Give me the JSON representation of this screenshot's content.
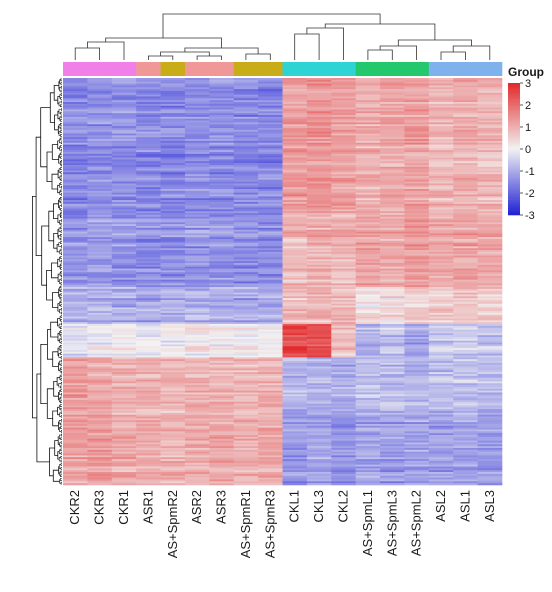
{
  "chart_data": {
    "type": "heatmap",
    "title": "",
    "legend_title": "Group",
    "color_scale": {
      "ticks": [
        3,
        2,
        1,
        0,
        -1,
        -2,
        -3
      ],
      "low_color": "#1f1fd6",
      "mid_color": "#f2f2f2",
      "high_color": "#e2282a"
    },
    "columns": [
      "CKR2",
      "CKR3",
      "CKR1",
      "ASR1",
      "AS+SpmR2",
      "ASR2",
      "ASR3",
      "AS+SpmR1",
      "AS+SpmR3",
      "CKL1",
      "CKL3",
      "CKL2",
      "AS+SpmL1",
      "AS+SpmL3",
      "AS+SpmL2",
      "ASL2",
      "ASL1",
      "ASL3"
    ],
    "groups": [
      {
        "name": "CKR",
        "color": "#f17fe8",
        "span": [
          0,
          3
        ]
      },
      {
        "name": "ASR",
        "color": "#f09898",
        "span": [
          3,
          4
        ]
      },
      {
        "name": "AS+SpmR",
        "color": "#c8ac18",
        "span": [
          4,
          5
        ]
      },
      {
        "name": "ASR",
        "color": "#f09898",
        "span": [
          5,
          7
        ]
      },
      {
        "name": "AS+SpmR",
        "color": "#c8ac18",
        "span": [
          7,
          9
        ]
      },
      {
        "name": "CKL",
        "color": "#2ed3d3",
        "span": [
          9,
          12
        ]
      },
      {
        "name": "AS+SpmL",
        "color": "#23c76c",
        "span": [
          12,
          15
        ]
      },
      {
        "name": "ASL",
        "color": "#7fb2ec",
        "span": [
          15,
          18
        ]
      }
    ],
    "row_blocks": [
      {
        "rows": 0.33,
        "values": [
          -1.5,
          -1.4,
          -1.4,
          -1.5,
          -1.5,
          -1.4,
          -1.4,
          -1.5,
          -1.5,
          1.3,
          1.4,
          1.2,
          1.0,
          1.1,
          1.2,
          0.9,
          1.0,
          0.9
        ]
      },
      {
        "rows": 0.18,
        "values": [
          -1.3,
          -1.2,
          -1.3,
          -1.4,
          -1.4,
          -1.3,
          -1.3,
          -1.4,
          -1.4,
          0.9,
          1.0,
          0.9,
          1.2,
          1.1,
          1.3,
          1.1,
          1.2,
          1.1
        ]
      },
      {
        "rows": 0.09,
        "values": [
          -1.0,
          -0.9,
          -1.0,
          -1.1,
          -1.0,
          -1.0,
          -1.0,
          -1.1,
          -1.0,
          0.7,
          0.8,
          0.8,
          0.2,
          0.3,
          0.4,
          0.5,
          0.6,
          0.5
        ]
      },
      {
        "rows": 0.08,
        "values": [
          -0.2,
          -0.1,
          0.0,
          -0.1,
          0.0,
          0.1,
          0.0,
          0.0,
          -0.1,
          2.6,
          2.4,
          0.8,
          -0.9,
          -0.7,
          -1.1,
          -0.6,
          -0.5,
          -0.6
        ]
      },
      {
        "rows": 0.14,
        "values": [
          1.2,
          1.0,
          0.9,
          0.9,
          0.8,
          0.9,
          0.9,
          0.8,
          0.9,
          -0.9,
          -1.0,
          -1.0,
          -0.7,
          -0.8,
          -0.9,
          -0.8,
          -0.7,
          -0.8
        ]
      },
      {
        "rows": 0.18,
        "values": [
          1.1,
          1.2,
          1.0,
          1.0,
          0.9,
          1.0,
          1.1,
          0.9,
          1.0,
          -1.3,
          -1.2,
          -1.4,
          -1.2,
          -1.3,
          -1.2,
          -1.3,
          -1.2,
          -1.3
        ]
      }
    ]
  }
}
